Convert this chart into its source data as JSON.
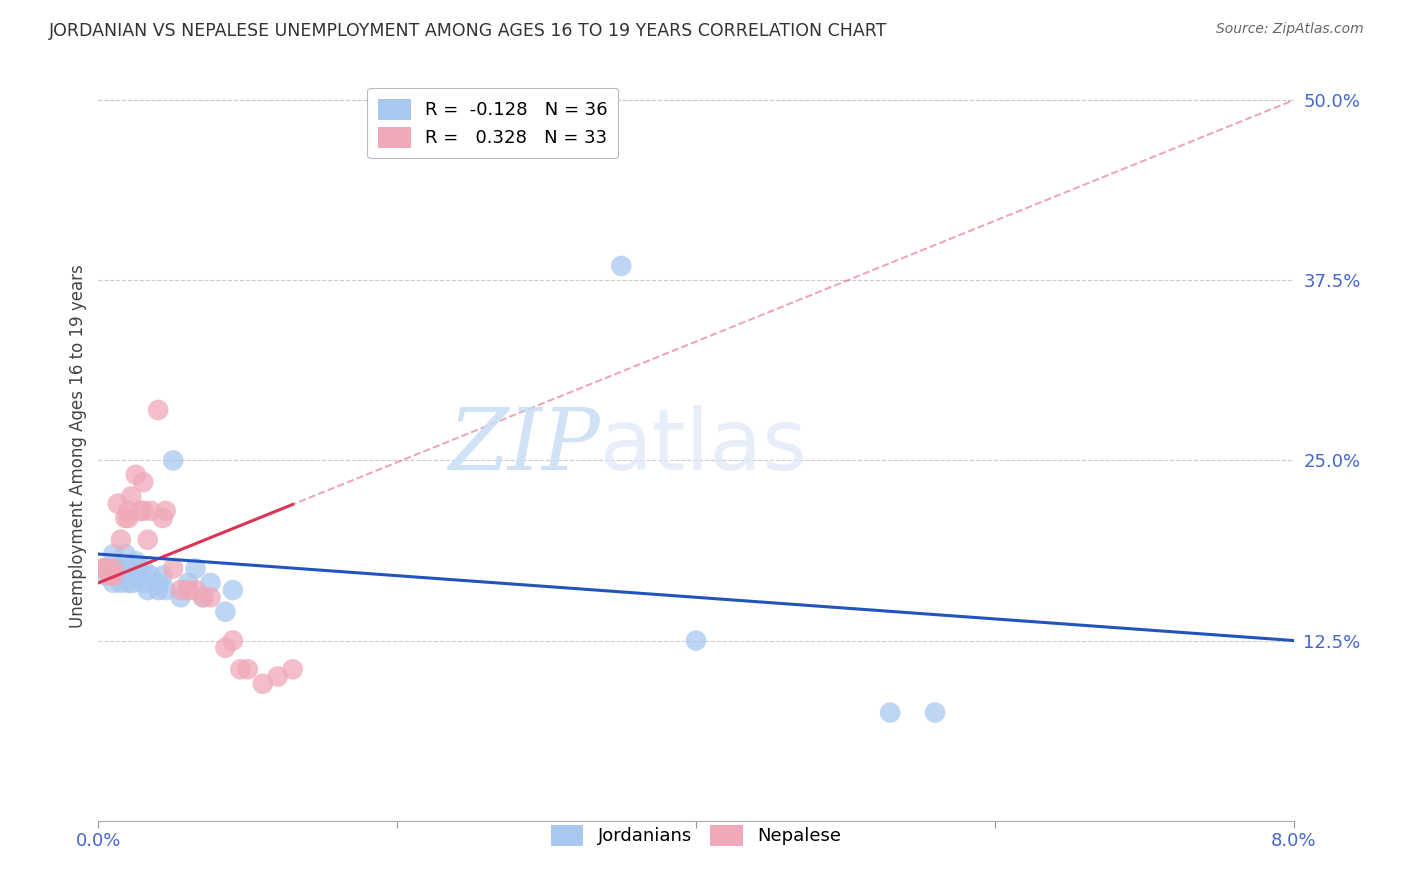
{
  "title": "JORDANIAN VS NEPALESE UNEMPLOYMENT AMONG AGES 16 TO 19 YEARS CORRELATION CHART",
  "source": "Source: ZipAtlas.com",
  "ylabel": "Unemployment Among Ages 16 to 19 years",
  "y_ticks_right": [
    "50.0%",
    "37.5%",
    "25.0%",
    "12.5%"
  ],
  "y_ticks_right_vals": [
    0.5,
    0.375,
    0.25,
    0.125
  ],
  "xlim": [
    0.0,
    0.08
  ],
  "ylim": [
    0.0,
    0.52
  ],
  "legend_r_jordan": "-0.128",
  "legend_n_jordan": "36",
  "legend_r_nepal": "0.328",
  "legend_n_nepal": "33",
  "jordan_color": "#a8c8f0",
  "nepal_color": "#f0a8b8",
  "jordan_line_color": "#2255bb",
  "nepal_line_color": "#dd3355",
  "background_color": "#ffffff",
  "grid_color": "#cccccc",
  "watermark_zip": "ZIP",
  "watermark_atlas": "atlas",
  "jordan_x": [
    0.0003,
    0.0005,
    0.0008,
    0.001,
    0.001,
    0.0013,
    0.0015,
    0.0016,
    0.0018,
    0.002,
    0.002,
    0.0022,
    0.0023,
    0.0025,
    0.0026,
    0.0028,
    0.003,
    0.003,
    0.0033,
    0.0035,
    0.004,
    0.004,
    0.0043,
    0.0045,
    0.005,
    0.0055,
    0.006,
    0.0065,
    0.007,
    0.0075,
    0.0085,
    0.009,
    0.035,
    0.04,
    0.053,
    0.056
  ],
  "jordan_y": [
    0.175,
    0.17,
    0.175,
    0.165,
    0.185,
    0.175,
    0.165,
    0.175,
    0.185,
    0.17,
    0.165,
    0.175,
    0.165,
    0.18,
    0.175,
    0.17,
    0.165,
    0.175,
    0.16,
    0.17,
    0.165,
    0.16,
    0.17,
    0.16,
    0.25,
    0.155,
    0.165,
    0.175,
    0.155,
    0.165,
    0.145,
    0.16,
    0.385,
    0.125,
    0.075,
    0.075
  ],
  "nepal_x": [
    0.0003,
    0.0005,
    0.0008,
    0.001,
    0.001,
    0.0013,
    0.0015,
    0.0018,
    0.002,
    0.002,
    0.0022,
    0.0025,
    0.0028,
    0.003,
    0.003,
    0.0033,
    0.0035,
    0.004,
    0.0043,
    0.0045,
    0.005,
    0.0055,
    0.006,
    0.0065,
    0.007,
    0.0075,
    0.0085,
    0.009,
    0.0095,
    0.01,
    0.011,
    0.012,
    0.013
  ],
  "nepal_y": [
    0.175,
    0.175,
    0.17,
    0.175,
    0.17,
    0.22,
    0.195,
    0.21,
    0.215,
    0.21,
    0.225,
    0.24,
    0.215,
    0.235,
    0.215,
    0.195,
    0.215,
    0.285,
    0.21,
    0.215,
    0.175,
    0.16,
    0.16,
    0.16,
    0.155,
    0.155,
    0.12,
    0.125,
    0.105,
    0.105,
    0.095,
    0.1,
    0.105
  ]
}
